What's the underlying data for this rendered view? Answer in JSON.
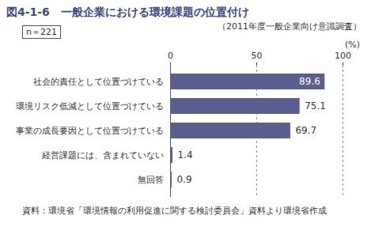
{
  "chart_data": {
    "type": "bar",
    "orientation": "horizontal",
    "title": "図4-1-6　一般企業における環境課題の位置付け",
    "subtitle": "（2011年度一般企業向け意識調査）",
    "annotations": [
      "n＝221"
    ],
    "xlabel": "(%)",
    "source": "資料：環境省「環境情報の利用促進に関する検討委員会」資料より環境省作成",
    "categories": [
      "社会的責任として位置づけている",
      "環境リスク低減として位置づけている",
      "事業の成長要因として位置づけている",
      "経営課題には、含まれていない",
      "無回答"
    ],
    "values": [
      89.6,
      75.1,
      69.7,
      1.4,
      0.9
    ],
    "color": "#5b5f8f",
    "xlim": [
      0,
      100
    ],
    "xticks": [
      0,
      50,
      100
    ],
    "grid": true,
    "data_labels": true
  }
}
